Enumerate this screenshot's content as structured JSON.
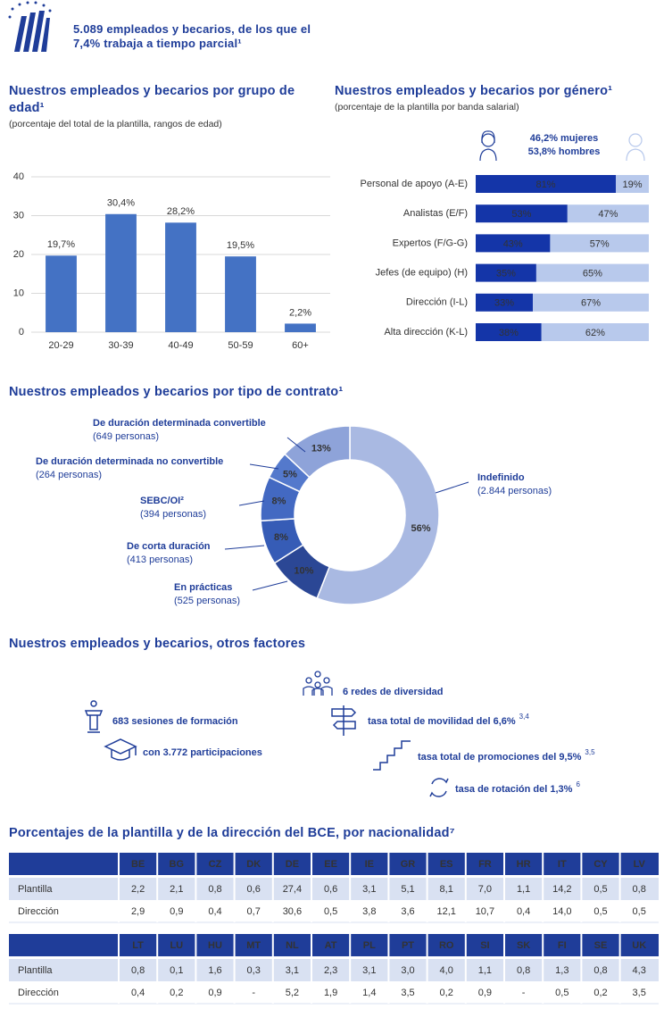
{
  "header": {
    "text": "5.089 empleados y becarios, de los que el 7,4% trabaja a tiempo parcial¹"
  },
  "chart_data": [
    {
      "type": "bar",
      "title": "Nuestros empleados y becarios por grupo de edad¹",
      "subtitle": "(porcentaje del total de la plantilla, rangos de edad)",
      "categories": [
        "20-29",
        "30-39",
        "40-49",
        "50-59",
        "60+"
      ],
      "values": [
        19.7,
        30.4,
        28.2,
        19.5,
        2.2
      ],
      "value_labels": [
        "19,7%",
        "30,4%",
        "28,2%",
        "19,5%",
        "2,2%"
      ],
      "color": "#4472c4",
      "ylim": [
        0,
        40
      ],
      "yticks": [
        0,
        10,
        20,
        30,
        40
      ],
      "grid": true
    },
    {
      "type": "stacked-hbar",
      "title": "Nuestros empleados y becarios por género¹",
      "subtitle": "(porcentaje de la plantilla por banda salarial)",
      "annotations": [
        "46,2%  mujeres",
        "53,8%  hombres"
      ],
      "categories": [
        "Personal de apoyo (A-E)",
        "Analistas (E/F)",
        "Expertos (F/G-G)",
        "Jefes (de equipo) (H)",
        "Dirección (I-L)",
        "Alta dirección (K-L)"
      ],
      "xlim": [
        0,
        100
      ],
      "series": [
        {
          "color": "#1435a8",
          "values": [
            81,
            53,
            43,
            35,
            33,
            38
          ],
          "value_labels": [
            "81%",
            "53%",
            "43%",
            "35%",
            "33%",
            "38%"
          ]
        },
        {
          "color": "#b8c9ec",
          "values": [
            19,
            47,
            57,
            65,
            67,
            62
          ],
          "value_labels": [
            "19%",
            "47%",
            "57%",
            "65%",
            "67%",
            "62%"
          ]
        }
      ]
    },
    {
      "type": "donut",
      "title": "Nuestros empleados y becarios por tipo de contrato¹",
      "categories": [
        "Indefinido",
        "En prácticas",
        "De corta duración",
        "SEBC/OI²",
        "De duración determinada no convertible",
        "De duración determinada convertible"
      ],
      "persons_labels": [
        "(2.844 personas)",
        "(525 personas)",
        "(413 personas)",
        "(394 personas)",
        "(264 personas)",
        "(649 personas)"
      ],
      "values": [
        56,
        10,
        8,
        8,
        5,
        13
      ],
      "value_labels": [
        "56%",
        "10%",
        "8%",
        "8%",
        "5%",
        "13%"
      ],
      "colors": [
        "#a9b9e2",
        "#2b4795",
        "#365cb6",
        "#4369c2",
        "#5479cc",
        "#8ea3d9"
      ]
    }
  ],
  "other_factors": {
    "title": "Nuestros empleados y becarios, otros factores",
    "items": [
      {
        "text": "6 redes de diversidad"
      },
      {
        "text": "683 sesiones de formación"
      },
      {
        "text": "tasa total de movilidad del 6,6%",
        "note": "3,4"
      },
      {
        "text": "con 3.772 participaciones"
      },
      {
        "text": "tasa total de promociones del 9,5%",
        "note": "3,5"
      },
      {
        "text": "tasa de rotación del 1,3%",
        "note": "6"
      }
    ]
  },
  "nationality_table": {
    "title": "Porcentajes de la plantilla y de la dirección del BCE, por nacionalidad⁷",
    "blocks": [
      {
        "columns": [
          "BE",
          "BG",
          "CZ",
          "DK",
          "DE",
          "EE",
          "IE",
          "GR",
          "ES",
          "FR",
          "HR",
          "IT",
          "CY",
          "LV"
        ],
        "rows": [
          {
            "label": "Plantilla",
            "cells": [
              "2,2",
              "2,1",
              "0,8",
              "0,6",
              "27,4",
              "0,6",
              "3,1",
              "5,1",
              "8,1",
              "7,0",
              "1,1",
              "14,2",
              "0,5",
              "0,8"
            ]
          },
          {
            "label": "Dirección",
            "cells": [
              "2,9",
              "0,9",
              "0,4",
              "0,7",
              "30,6",
              "0,5",
              "3,8",
              "3,6",
              "12,1",
              "10,7",
              "0,4",
              "14,0",
              "0,5",
              "0,5"
            ]
          }
        ]
      },
      {
        "columns": [
          "LT",
          "LU",
          "HU",
          "MT",
          "NL",
          "AT",
          "PL",
          "PT",
          "RO",
          "SI",
          "SK",
          "FI",
          "SE",
          "UK"
        ],
        "rows": [
          {
            "label": "Plantilla",
            "cells": [
              "0,8",
              "0,1",
              "1,6",
              "0,3",
              "3,1",
              "2,3",
              "3,1",
              "3,0",
              "4,0",
              "1,1",
              "0,8",
              "1,3",
              "0,8",
              "4,3"
            ]
          },
          {
            "label": "Dirección",
            "cells": [
              "0,4",
              "0,2",
              "0,9",
              "-",
              "5,2",
              "1,9",
              "1,4",
              "3,5",
              "0,2",
              "0,9",
              "-",
              "0,5",
              "0,2",
              "3,5"
            ]
          }
        ]
      }
    ]
  }
}
